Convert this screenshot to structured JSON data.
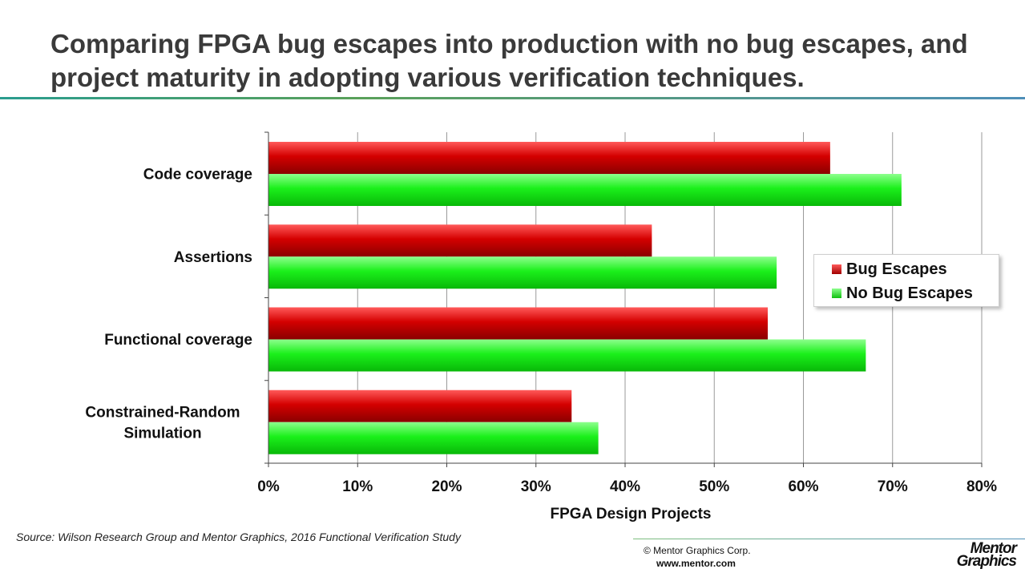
{
  "title": "Comparing FPGA bug escapes into production with no bug escapes, and project maturity in adopting various verification techniques.",
  "chart_data": {
    "type": "bar",
    "orientation": "horizontal",
    "categories": [
      "Code coverage",
      "Assertions",
      "Functional coverage",
      "Constrained-Random Simulation"
    ],
    "series": [
      {
        "name": "Bug Escapes",
        "values": [
          63,
          43,
          56,
          34
        ],
        "color": "#cc0000"
      },
      {
        "name": "No Bug Escapes",
        "values": [
          71,
          57,
          67,
          37
        ],
        "color": "#22ee22"
      }
    ],
    "xlabel": "FPGA Design Projects",
    "xlim": [
      0,
      80
    ],
    "xticks": [
      "0%",
      "10%",
      "20%",
      "30%",
      "40%",
      "50%",
      "60%",
      "70%",
      "80%"
    ],
    "grid": true,
    "legend_position": "right"
  },
  "source": "Source:  Wilson Research Group and Mentor Graphics, 2016 Functional Verification Study",
  "footer": {
    "copyright": "© Mentor Graphics Corp.",
    "website": "www.mentor.com",
    "logo_line1": "Mentor",
    "logo_line2": "Graphics"
  }
}
